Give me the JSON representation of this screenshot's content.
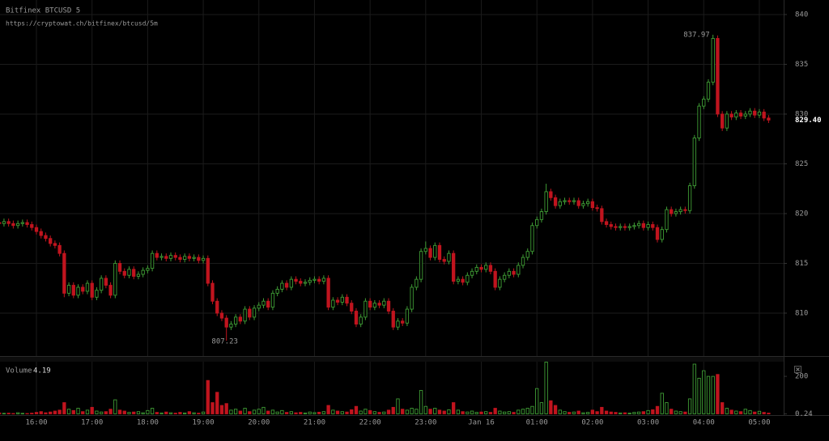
{
  "chart_data": {
    "type": "candlestick",
    "title": "Bitfinex BTCUSD 5",
    "subtitle": "https://cryptowat.ch/bitfinex/btcusd/5m",
    "up_color": "#3f9c35",
    "down_color": "#c0141e",
    "grid": true,
    "ylim": [
      805.69,
      841.46
    ],
    "yticks": [
      810,
      815,
      820,
      825,
      830,
      835,
      840
    ],
    "last_price_label": "829.40",
    "categories": [
      null,
      null,
      null,
      null,
      null,
      null,
      null,
      null,
      "16:00",
      null,
      null,
      null,
      null,
      null,
      null,
      null,
      null,
      null,
      null,
      null,
      "17:00",
      null,
      null,
      null,
      null,
      null,
      null,
      null,
      null,
      null,
      null,
      null,
      "18:00",
      null,
      null,
      null,
      null,
      null,
      null,
      null,
      null,
      null,
      null,
      null,
      "19:00",
      null,
      null,
      null,
      null,
      null,
      null,
      null,
      null,
      null,
      null,
      null,
      "20:00",
      null,
      null,
      null,
      null,
      null,
      null,
      null,
      null,
      null,
      null,
      null,
      "21:00",
      null,
      null,
      null,
      null,
      null,
      null,
      null,
      null,
      null,
      null,
      null,
      "22:00",
      null,
      null,
      null,
      null,
      null,
      null,
      null,
      null,
      null,
      null,
      null,
      "23:00",
      null,
      null,
      null,
      null,
      null,
      null,
      null,
      null,
      null,
      null,
      null,
      "Jan 16",
      null,
      null,
      null,
      null,
      null,
      null,
      null,
      null,
      null,
      null,
      null,
      "01:00",
      null,
      null,
      null,
      null,
      null,
      null,
      null,
      null,
      null,
      null,
      null,
      "02:00",
      null,
      null,
      null,
      null,
      null,
      null,
      null,
      null,
      null,
      null,
      null,
      "03:00",
      null,
      null,
      null,
      null,
      null,
      null,
      null,
      null,
      null,
      null,
      null,
      "04:00",
      null,
      null,
      null,
      null,
      null,
      null,
      null,
      null,
      null,
      null,
      null,
      "05:00",
      null,
      null
    ],
    "candles": [
      [
        819.1,
        819.4,
        818.7,
        819.0
      ],
      [
        819.0,
        819.5,
        818.7,
        819.2
      ],
      [
        819.2,
        819.5,
        818.7,
        819.0
      ],
      [
        819.0,
        819.3,
        818.5,
        818.8
      ],
      [
        818.8,
        819.3,
        818.5,
        819.0
      ],
      [
        819.0,
        819.4,
        818.7,
        819.1
      ],
      [
        819.1,
        819.4,
        818.6,
        818.9
      ],
      [
        818.9,
        819.2,
        818.3,
        818.6
      ],
      [
        818.6,
        818.9,
        817.9,
        818.2
      ],
      [
        818.2,
        818.5,
        817.5,
        817.8
      ],
      [
        817.8,
        818.1,
        817.2,
        817.5
      ],
      [
        817.5,
        817.8,
        816.7,
        817.0
      ],
      [
        817.0,
        817.3,
        816.5,
        816.8
      ],
      [
        816.8,
        817.1,
        815.7,
        816.0
      ],
      [
        816.0,
        816.3,
        811.6,
        812.0
      ],
      [
        812.0,
        813.1,
        811.7,
        812.8
      ],
      [
        812.8,
        813.1,
        811.5,
        811.8
      ],
      [
        811.8,
        812.9,
        811.5,
        812.6
      ],
      [
        812.6,
        812.9,
        811.9,
        812.2
      ],
      [
        812.2,
        813.3,
        811.9,
        813.0
      ],
      [
        813.0,
        813.3,
        811.3,
        811.6
      ],
      [
        811.6,
        812.6,
        811.3,
        812.3
      ],
      [
        812.3,
        813.8,
        812.0,
        813.5
      ],
      [
        813.5,
        813.8,
        812.5,
        812.8
      ],
      [
        812.8,
        813.1,
        811.5,
        811.8
      ],
      [
        811.8,
        815.3,
        811.5,
        815.0
      ],
      [
        815.0,
        815.3,
        813.9,
        814.2
      ],
      [
        814.2,
        814.5,
        813.5,
        813.8
      ],
      [
        813.8,
        814.7,
        813.5,
        814.4
      ],
      [
        814.4,
        814.7,
        813.4,
        813.7
      ],
      [
        813.7,
        814.2,
        813.4,
        813.9
      ],
      [
        813.9,
        814.6,
        813.6,
        814.3
      ],
      [
        814.3,
        814.8,
        814.0,
        814.5
      ],
      [
        814.5,
        816.3,
        814.2,
        816.0
      ],
      [
        816.0,
        816.3,
        815.3,
        815.6
      ],
      [
        815.6,
        816.0,
        815.3,
        815.7
      ],
      [
        815.7,
        816.0,
        815.2,
        815.5
      ],
      [
        815.5,
        816.1,
        815.2,
        815.8
      ],
      [
        815.8,
        816.1,
        815.3,
        815.6
      ],
      [
        815.6,
        815.9,
        815.1,
        815.4
      ],
      [
        815.4,
        816.0,
        815.1,
        815.7
      ],
      [
        815.7,
        816.0,
        815.2,
        815.5
      ],
      [
        815.5,
        815.9,
        815.2,
        815.6
      ],
      [
        815.6,
        815.9,
        815.0,
        815.3
      ],
      [
        815.3,
        815.8,
        815.0,
        815.5
      ],
      [
        815.5,
        815.8,
        812.7,
        813.0
      ],
      [
        813.0,
        813.3,
        810.9,
        811.2
      ],
      [
        811.2,
        811.5,
        809.7,
        810.0
      ],
      [
        810.0,
        810.3,
        809.2,
        809.5
      ],
      [
        809.5,
        809.8,
        807.23,
        808.6
      ],
      [
        808.6,
        809.2,
        808.3,
        808.9
      ],
      [
        808.9,
        809.9,
        808.6,
        809.6
      ],
      [
        809.6,
        809.9,
        808.9,
        809.2
      ],
      [
        809.2,
        810.7,
        808.9,
        810.4
      ],
      [
        810.4,
        810.7,
        809.3,
        809.6
      ],
      [
        809.6,
        810.8,
        809.3,
        810.5
      ],
      [
        810.5,
        811.1,
        810.2,
        810.8
      ],
      [
        810.8,
        811.5,
        810.5,
        811.2
      ],
      [
        811.2,
        811.5,
        810.3,
        810.6
      ],
      [
        810.6,
        812.3,
        810.3,
        812.0
      ],
      [
        812.0,
        812.7,
        811.7,
        812.4
      ],
      [
        812.4,
        813.3,
        812.1,
        813.0
      ],
      [
        813.0,
        813.3,
        812.3,
        812.6
      ],
      [
        812.6,
        813.7,
        812.3,
        813.4
      ],
      [
        813.4,
        813.7,
        812.9,
        813.2
      ],
      [
        813.2,
        813.5,
        812.7,
        813.0
      ],
      [
        813.0,
        813.4,
        812.7,
        813.1
      ],
      [
        813.1,
        813.6,
        812.8,
        813.3
      ],
      [
        813.3,
        813.7,
        813.0,
        813.4
      ],
      [
        813.4,
        813.7,
        812.9,
        813.2
      ],
      [
        813.2,
        813.8,
        812.9,
        813.5
      ],
      [
        813.5,
        813.8,
        810.3,
        810.6
      ],
      [
        810.6,
        811.6,
        810.3,
        811.3
      ],
      [
        811.3,
        811.6,
        810.8,
        811.1
      ],
      [
        811.1,
        811.9,
        810.8,
        811.6
      ],
      [
        811.6,
        811.9,
        810.7,
        811.0
      ],
      [
        811.0,
        811.3,
        809.9,
        810.2
      ],
      [
        810.2,
        810.5,
        808.6,
        808.9
      ],
      [
        808.9,
        809.9,
        808.6,
        809.6
      ],
      [
        809.6,
        811.5,
        809.3,
        811.2
      ],
      [
        811.2,
        811.5,
        810.3,
        810.6
      ],
      [
        810.6,
        811.3,
        810.3,
        811.0
      ],
      [
        811.0,
        811.3,
        810.5,
        810.8
      ],
      [
        810.8,
        811.5,
        810.5,
        811.2
      ],
      [
        811.2,
        811.5,
        809.9,
        810.2
      ],
      [
        810.2,
        810.5,
        808.3,
        808.6
      ],
      [
        808.6,
        809.5,
        808.3,
        809.2
      ],
      [
        809.2,
        809.5,
        808.7,
        809.0
      ],
      [
        809.0,
        810.7,
        808.7,
        810.4
      ],
      [
        810.4,
        812.9,
        810.1,
        812.6
      ],
      [
        812.6,
        813.7,
        812.3,
        813.4
      ],
      [
        813.4,
        816.5,
        813.1,
        816.2
      ],
      [
        816.2,
        817.2,
        815.9,
        816.5
      ],
      [
        816.5,
        816.8,
        815.3,
        815.6
      ],
      [
        815.6,
        817.1,
        815.3,
        816.8
      ],
      [
        816.8,
        817.1,
        815.1,
        815.4
      ],
      [
        815.4,
        815.7,
        814.9,
        815.2
      ],
      [
        815.2,
        816.3,
        814.9,
        816.0
      ],
      [
        816.0,
        816.3,
        812.9,
        813.2
      ],
      [
        813.2,
        813.7,
        812.9,
        813.4
      ],
      [
        813.4,
        813.7,
        812.8,
        813.1
      ],
      [
        813.1,
        814.1,
        812.8,
        813.8
      ],
      [
        813.8,
        814.5,
        813.5,
        814.2
      ],
      [
        814.2,
        814.9,
        813.9,
        814.6
      ],
      [
        814.6,
        814.9,
        814.1,
        814.4
      ],
      [
        814.4,
        815.1,
        814.1,
        814.8
      ],
      [
        814.8,
        815.1,
        813.9,
        814.2
      ],
      [
        814.2,
        814.5,
        812.3,
        812.6
      ],
      [
        812.6,
        813.7,
        812.3,
        813.4
      ],
      [
        813.4,
        814.1,
        813.1,
        813.8
      ],
      [
        813.8,
        814.5,
        813.5,
        814.2
      ],
      [
        814.2,
        814.5,
        813.6,
        813.9
      ],
      [
        813.9,
        815.1,
        813.6,
        814.8
      ],
      [
        814.8,
        815.9,
        814.5,
        815.6
      ],
      [
        815.6,
        816.5,
        815.3,
        816.2
      ],
      [
        816.2,
        819.1,
        815.9,
        818.8
      ],
      [
        818.8,
        819.7,
        818.5,
        819.4
      ],
      [
        819.4,
        820.5,
        819.1,
        820.2
      ],
      [
        820.2,
        823.0,
        819.9,
        822.2
      ],
      [
        822.2,
        822.5,
        821.3,
        821.6
      ],
      [
        821.6,
        821.9,
        820.5,
        820.8
      ],
      [
        820.8,
        821.5,
        820.5,
        821.2
      ],
      [
        821.2,
        821.6,
        820.9,
        821.3
      ],
      [
        821.3,
        821.6,
        820.9,
        821.2
      ],
      [
        821.2,
        821.6,
        820.9,
        821.3
      ],
      [
        821.3,
        821.6,
        820.5,
        820.8
      ],
      [
        820.8,
        821.3,
        820.5,
        821.0
      ],
      [
        821.0,
        821.5,
        820.7,
        821.2
      ],
      [
        821.2,
        821.5,
        820.3,
        820.6
      ],
      [
        820.6,
        820.9,
        820.2,
        820.5
      ],
      [
        820.5,
        820.8,
        818.9,
        819.2
      ],
      [
        819.2,
        819.5,
        818.6,
        818.9
      ],
      [
        818.9,
        819.2,
        818.4,
        818.7
      ],
      [
        818.7,
        819.0,
        818.3,
        818.6
      ],
      [
        818.6,
        819.0,
        818.3,
        818.7
      ],
      [
        818.7,
        819.0,
        818.3,
        818.6
      ],
      [
        818.6,
        819.0,
        818.3,
        818.7
      ],
      [
        818.7,
        819.1,
        818.4,
        818.8
      ],
      [
        818.8,
        819.3,
        818.5,
        819.0
      ],
      [
        819.0,
        819.3,
        818.3,
        818.6
      ],
      [
        818.6,
        819.2,
        818.3,
        818.9
      ],
      [
        818.9,
        819.2,
        818.3,
        818.6
      ],
      [
        818.6,
        818.9,
        817.1,
        817.4
      ],
      [
        817.4,
        818.7,
        817.1,
        818.4
      ],
      [
        818.4,
        820.7,
        818.1,
        820.4
      ],
      [
        820.4,
        820.7,
        819.7,
        820.0
      ],
      [
        820.0,
        820.5,
        819.7,
        820.2
      ],
      [
        820.2,
        820.7,
        819.9,
        820.4
      ],
      [
        820.4,
        820.7,
        820.0,
        820.3
      ],
      [
        820.3,
        823.1,
        820.0,
        822.8
      ],
      [
        822.8,
        827.9,
        822.5,
        827.6
      ],
      [
        827.6,
        831.1,
        827.3,
        830.8
      ],
      [
        830.8,
        831.8,
        830.5,
        831.5
      ],
      [
        831.5,
        833.5,
        831.2,
        833.2
      ],
      [
        833.2,
        837.97,
        832.9,
        837.6
      ],
      [
        837.6,
        837.9,
        829.7,
        830.0
      ],
      [
        830.0,
        830.3,
        828.3,
        828.6
      ],
      [
        828.6,
        830.3,
        828.3,
        830.0
      ],
      [
        830.0,
        830.3,
        829.4,
        829.7
      ],
      [
        829.7,
        830.4,
        829.4,
        830.1
      ],
      [
        830.1,
        830.4,
        829.5,
        829.8
      ],
      [
        829.8,
        830.3,
        829.5,
        830.0
      ],
      [
        830.0,
        830.6,
        829.7,
        830.3
      ],
      [
        830.3,
        830.6,
        829.6,
        829.9
      ],
      [
        829.9,
        830.5,
        829.6,
        830.2
      ],
      [
        830.2,
        830.5,
        829.3,
        829.6
      ],
      [
        829.6,
        829.9,
        829.1,
        829.4
      ]
    ],
    "volume": {
      "label": "Volume",
      "ylim": [
        0,
        278
      ],
      "yticks": [
        0.24,
        200
      ],
      "values": [
        5,
        3,
        4,
        2,
        6,
        3,
        2,
        4,
        8,
        12,
        6,
        10,
        15,
        20,
        60,
        25,
        18,
        30,
        12,
        20,
        35,
        15,
        10,
        12,
        25,
        75,
        20,
        15,
        8,
        10,
        12,
        6,
        18,
        30,
        8,
        5,
        10,
        6,
        4,
        8,
        5,
        12,
        6,
        4,
        10,
        178,
        60,
        115,
        45,
        55,
        20,
        25,
        15,
        30,
        12,
        20,
        25,
        35,
        15,
        20,
        10,
        18,
        8,
        12,
        6,
        8,
        5,
        10,
        7,
        9,
        12,
        45,
        20,
        15,
        12,
        10,
        22,
        40,
        15,
        25,
        18,
        12,
        8,
        10,
        20,
        35,
        80,
        25,
        20,
        30,
        25,
        125,
        40,
        25,
        30,
        20,
        15,
        22,
        60,
        20,
        12,
        10,
        15,
        8,
        10,
        12,
        8,
        30,
        15,
        10,
        12,
        8,
        20,
        25,
        30,
        40,
        135,
        60,
        276,
        70,
        45,
        20,
        12,
        8,
        10,
        15,
        6,
        8,
        20,
        12,
        35,
        15,
        10,
        8,
        5,
        6,
        4,
        8,
        10,
        12,
        18,
        22,
        40,
        110,
        60,
        25,
        15,
        12,
        10,
        80,
        265,
        190,
        230,
        200,
        200,
        210,
        60,
        30,
        20,
        15,
        12,
        25,
        18,
        10,
        14,
        8,
        4.19
      ]
    }
  }
}
